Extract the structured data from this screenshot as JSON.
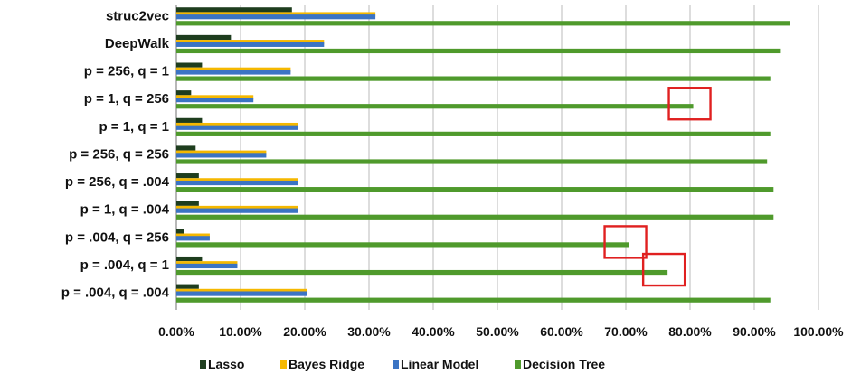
{
  "chart_data": {
    "type": "bar",
    "orientation": "horizontal",
    "categories": [
      "struc2vec",
      "DeepWalk",
      "p = 256, q = 1",
      "p = 1, q = 256",
      "p = 1, q = 1",
      "p = 256, q = 256",
      "p = 256, q = .004",
      "p = 1, q = .004",
      "p = .004, q = 256",
      "p = .004, q = 1",
      "p = .004, q = .004"
    ],
    "series": [
      {
        "name": "Lasso",
        "color": "#1e3d1e",
        "values": [
          18.0,
          8.5,
          4.0,
          2.3,
          4.0,
          3.0,
          3.5,
          3.5,
          1.2,
          4.0,
          3.5
        ]
      },
      {
        "name": "Bayes Ridge",
        "color": "#f5b800",
        "values": [
          31.0,
          23.0,
          17.8,
          12.0,
          19.0,
          14.0,
          19.0,
          19.0,
          5.2,
          9.5,
          20.3
        ]
      },
      {
        "name": "Linear Model",
        "color": "#3b74c4",
        "values": [
          31.0,
          23.0,
          17.8,
          12.0,
          19.0,
          14.0,
          19.0,
          19.0,
          5.2,
          9.5,
          20.3
        ]
      },
      {
        "name": "Decision Tree",
        "color": "#4f9a2c",
        "values": [
          95.5,
          94.0,
          92.5,
          80.5,
          92.5,
          92.0,
          93.0,
          93.0,
          70.5,
          76.5,
          92.5
        ]
      }
    ],
    "xlim": [
      0,
      100
    ],
    "ticks": [
      "0.00%",
      "10.00%",
      "20.00%",
      "30.00%",
      "40.00%",
      "50.00%",
      "60.00%",
      "70.00%",
      "80.00%",
      "90.00%",
      "100.00%"
    ],
    "grid": true,
    "legend_position": "bottom",
    "highlight_color": "#e02020",
    "highlights": [
      {
        "category": "p = 1, q = 256",
        "series": "Decision Tree"
      },
      {
        "category": "p = .004, q = 256",
        "series": "Decision Tree"
      },
      {
        "category": "p = .004, q = 1",
        "series": "Decision Tree"
      }
    ]
  }
}
